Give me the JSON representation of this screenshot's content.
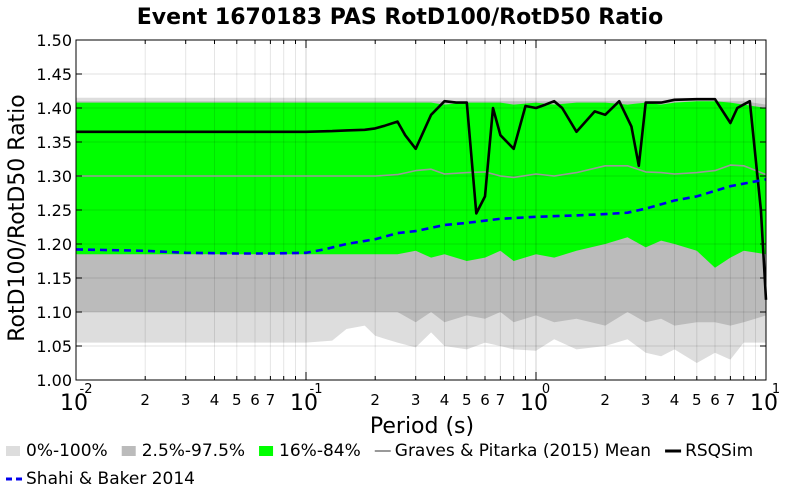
{
  "chart_data": {
    "type": "line",
    "title": "Event 1670183 PAS RotD100/RotD50 Ratio",
    "xlabel": "Period (s)",
    "ylabel": "RotD100/RotD50 Ratio",
    "xscale": "log",
    "xlim": [
      0.01,
      10
    ],
    "ylim": [
      1.0,
      1.5
    ],
    "yticks": [
      "1.00",
      "1.05",
      "1.10",
      "1.15",
      "1.20",
      "1.25",
      "1.30",
      "1.35",
      "1.40",
      "1.45",
      "1.50"
    ],
    "major_ticks": [
      {
        "base": "10",
        "exp": "-2",
        "value": 0.01
      },
      {
        "base": "10",
        "exp": "-1",
        "value": 0.1
      },
      {
        "base": "10",
        "exp": "0",
        "value": 1
      },
      {
        "base": "10",
        "exp": "1",
        "value": 10
      }
    ],
    "minor_labels": [
      "2",
      "3",
      "4",
      "5",
      "6",
      "7"
    ],
    "grid": true,
    "legend_position": "bottom",
    "bands": [
      {
        "name": "0%-100%",
        "color": "#dddddd",
        "x": [
          0.01,
          0.02,
          0.05,
          0.1,
          0.13,
          0.15,
          0.18,
          0.2,
          0.25,
          0.3,
          0.35,
          0.4,
          0.5,
          0.6,
          0.7,
          0.8,
          1.0,
          1.2,
          1.5,
          2.0,
          2.5,
          3.0,
          3.5,
          4.0,
          5.0,
          6.0,
          7.0,
          8.0,
          10.0
        ],
        "lower": [
          1.055,
          1.055,
          1.055,
          1.055,
          1.058,
          1.075,
          1.08,
          1.065,
          1.055,
          1.048,
          1.07,
          1.05,
          1.045,
          1.055,
          1.05,
          1.045,
          1.043,
          1.06,
          1.045,
          1.05,
          1.06,
          1.04,
          1.035,
          1.045,
          1.025,
          1.04,
          1.03,
          1.055,
          1.055
        ],
        "upper": [
          1.415,
          1.415,
          1.415,
          1.415,
          1.415,
          1.415,
          1.415,
          1.415,
          1.415,
          1.415,
          1.415,
          1.415,
          1.415,
          1.415,
          1.415,
          1.415,
          1.415,
          1.415,
          1.415,
          1.415,
          1.415,
          1.415,
          1.415,
          1.415,
          1.415,
          1.415,
          1.415,
          1.415,
          1.415
        ]
      },
      {
        "name": "2.5%-97.5%",
        "color": "#bbbbbb",
        "x": [
          0.01,
          0.02,
          0.05,
          0.1,
          0.13,
          0.15,
          0.18,
          0.2,
          0.25,
          0.3,
          0.35,
          0.4,
          0.5,
          0.6,
          0.7,
          0.8,
          1.0,
          1.2,
          1.5,
          2.0,
          2.5,
          3.0,
          3.5,
          4.0,
          5.0,
          6.0,
          7.0,
          8.0,
          10.0
        ],
        "lower": [
          1.1,
          1.1,
          1.1,
          1.1,
          1.1,
          1.1,
          1.1,
          1.1,
          1.1,
          1.085,
          1.1,
          1.085,
          1.095,
          1.09,
          1.1,
          1.085,
          1.095,
          1.085,
          1.09,
          1.08,
          1.1,
          1.085,
          1.09,
          1.08,
          1.085,
          1.085,
          1.08,
          1.085,
          1.095
        ],
        "upper": [
          1.41,
          1.41,
          1.41,
          1.41,
          1.41,
          1.41,
          1.41,
          1.41,
          1.41,
          1.41,
          1.41,
          1.41,
          1.41,
          1.41,
          1.41,
          1.41,
          1.41,
          1.41,
          1.41,
          1.41,
          1.41,
          1.41,
          1.41,
          1.41,
          1.41,
          1.41,
          1.41,
          1.41,
          1.405
        ]
      },
      {
        "name": "16%-84%",
        "color": "#00ff00",
        "x": [
          0.01,
          0.02,
          0.05,
          0.1,
          0.13,
          0.15,
          0.18,
          0.2,
          0.25,
          0.3,
          0.35,
          0.4,
          0.5,
          0.6,
          0.7,
          0.8,
          1.0,
          1.2,
          1.5,
          2.0,
          2.5,
          3.0,
          3.5,
          4.0,
          5.0,
          6.0,
          7.0,
          8.0,
          10.0
        ],
        "lower": [
          1.185,
          1.185,
          1.185,
          1.185,
          1.185,
          1.185,
          1.185,
          1.185,
          1.185,
          1.19,
          1.18,
          1.185,
          1.175,
          1.18,
          1.19,
          1.175,
          1.185,
          1.18,
          1.19,
          1.2,
          1.21,
          1.195,
          1.205,
          1.2,
          1.19,
          1.165,
          1.18,
          1.19,
          1.185
        ],
        "upper": [
          1.408,
          1.408,
          1.408,
          1.408,
          1.408,
          1.408,
          1.408,
          1.408,
          1.408,
          1.408,
          1.408,
          1.405,
          1.408,
          1.408,
          1.408,
          1.405,
          1.408,
          1.405,
          1.408,
          1.408,
          1.405,
          1.408,
          1.405,
          1.408,
          1.41,
          1.41,
          1.408,
          1.405,
          1.4
        ]
      }
    ],
    "series": [
      {
        "name": "Graves & Pitarka (2015) Mean",
        "color": "#999999",
        "style": "solid",
        "x": [
          0.01,
          0.02,
          0.05,
          0.1,
          0.15,
          0.2,
          0.25,
          0.3,
          0.35,
          0.4,
          0.5,
          0.6,
          0.7,
          0.8,
          1.0,
          1.2,
          1.5,
          2.0,
          2.5,
          3.0,
          3.5,
          4.0,
          5.0,
          6.0,
          7.0,
          8.0,
          10.0
        ],
        "y": [
          1.3,
          1.3,
          1.3,
          1.3,
          1.3,
          1.3,
          1.302,
          1.308,
          1.31,
          1.303,
          1.305,
          1.306,
          1.3,
          1.298,
          1.303,
          1.3,
          1.305,
          1.315,
          1.315,
          1.306,
          1.305,
          1.303,
          1.305,
          1.308,
          1.316,
          1.315,
          1.302
        ]
      },
      {
        "name": "RSQSim",
        "color": "#000000",
        "style": "solid",
        "x": [
          0.01,
          0.02,
          0.05,
          0.1,
          0.13,
          0.15,
          0.18,
          0.2,
          0.22,
          0.25,
          0.27,
          0.3,
          0.35,
          0.4,
          0.45,
          0.5,
          0.55,
          0.6,
          0.65,
          0.7,
          0.8,
          0.9,
          1.0,
          1.1,
          1.2,
          1.3,
          1.5,
          1.8,
          2.0,
          2.3,
          2.6,
          2.8,
          3.0,
          3.2,
          3.5,
          4.0,
          5.0,
          6.0,
          7.0,
          7.5,
          8.5,
          9.5,
          10.0
        ],
        "y": [
          1.365,
          1.365,
          1.365,
          1.365,
          1.366,
          1.367,
          1.368,
          1.37,
          1.374,
          1.38,
          1.36,
          1.34,
          1.39,
          1.41,
          1.408,
          1.408,
          1.245,
          1.27,
          1.4,
          1.36,
          1.34,
          1.403,
          1.4,
          1.405,
          1.41,
          1.4,
          1.365,
          1.395,
          1.39,
          1.41,
          1.373,
          1.315,
          1.408,
          1.408,
          1.408,
          1.412,
          1.413,
          1.413,
          1.378,
          1.4,
          1.41,
          1.25,
          1.118
        ]
      },
      {
        "name": "Shahi & Baker 2014",
        "color": "#0000ee",
        "style": "dashed",
        "x": [
          0.01,
          0.02,
          0.03,
          0.05,
          0.07,
          0.1,
          0.12,
          0.15,
          0.2,
          0.25,
          0.3,
          0.4,
          0.5,
          0.7,
          1.0,
          1.5,
          2.0,
          2.5,
          3.0,
          4.0,
          5.0,
          7.0,
          10.0
        ],
        "y": [
          1.192,
          1.19,
          1.187,
          1.186,
          1.186,
          1.187,
          1.192,
          1.2,
          1.207,
          1.216,
          1.219,
          1.228,
          1.231,
          1.237,
          1.24,
          1.242,
          1.244,
          1.246,
          1.252,
          1.264,
          1.27,
          1.285,
          1.295
        ]
      }
    ]
  }
}
